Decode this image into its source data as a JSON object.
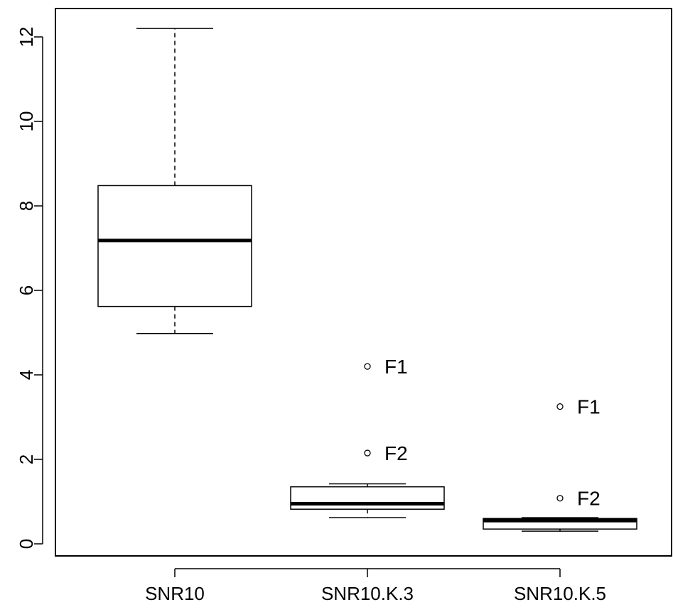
{
  "chart_data": {
    "type": "boxplot",
    "title": "",
    "xlabel": "",
    "ylabel": "",
    "ylim": [
      0,
      12.4
    ],
    "y_ticks": [
      0,
      2,
      4,
      6,
      8,
      10,
      12
    ],
    "grid": false,
    "categories": [
      "SNR10",
      "SNR10.K.3",
      "SNR10.K.5"
    ],
    "boxes": [
      {
        "category": "SNR10",
        "whisker_low": 4.98,
        "q1": 5.62,
        "median": 7.18,
        "q3": 8.48,
        "whisker_high": 12.2,
        "outliers": []
      },
      {
        "category": "SNR10.K.3",
        "whisker_low": 0.62,
        "q1": 0.82,
        "median": 0.95,
        "q3": 1.35,
        "whisker_high": 1.42,
        "outliers": [
          {
            "value": 4.2,
            "label": "F1"
          },
          {
            "value": 2.15,
            "label": "F2"
          }
        ]
      },
      {
        "category": "SNR10.K.5",
        "whisker_low": 0.3,
        "q1": 0.35,
        "median": 0.55,
        "q3": 0.6,
        "whisker_high": 0.62,
        "outliers": [
          {
            "value": 3.25,
            "label": "F1"
          },
          {
            "value": 1.08,
            "label": "F2"
          }
        ]
      }
    ]
  }
}
